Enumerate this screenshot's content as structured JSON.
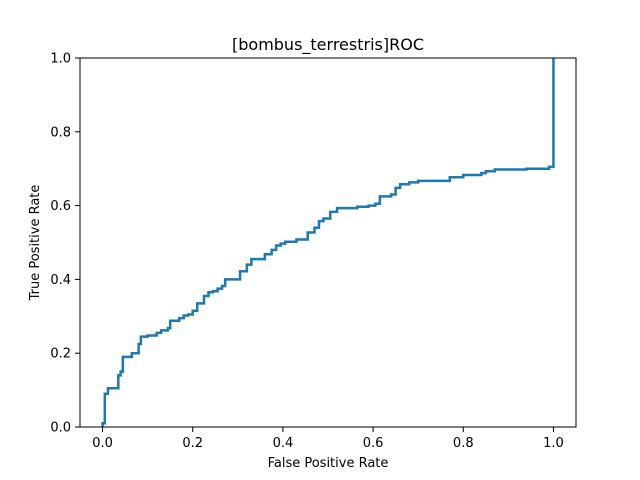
{
  "chart_data": {
    "type": "line",
    "title": "[bombus_terrestris]ROC",
    "xlabel": "False Positive Rate",
    "ylabel": "True Positive Rate",
    "xlim": [
      -0.05,
      1.05
    ],
    "ylim": [
      0.0,
      1.0
    ],
    "xticks": [
      0.0,
      0.2,
      0.4,
      0.6,
      0.8,
      1.0
    ],
    "xtick_labels": [
      "0.0",
      "0.2",
      "0.4",
      "0.6",
      "0.8",
      "1.0"
    ],
    "yticks": [
      0.0,
      0.2,
      0.4,
      0.6,
      0.8,
      1.0
    ],
    "ytick_labels": [
      "0.0",
      "0.2",
      "0.4",
      "0.6",
      "0.8",
      "1.0"
    ],
    "grid": false,
    "series": [
      {
        "color": "#1f77b4",
        "points": [
          [
            0.0,
            0.0
          ],
          [
            0.0,
            0.01
          ],
          [
            0.005,
            0.01
          ],
          [
            0.005,
            0.09
          ],
          [
            0.012,
            0.09
          ],
          [
            0.012,
            0.105
          ],
          [
            0.035,
            0.105
          ],
          [
            0.035,
            0.14
          ],
          [
            0.04,
            0.14
          ],
          [
            0.04,
            0.15
          ],
          [
            0.045,
            0.15
          ],
          [
            0.045,
            0.19
          ],
          [
            0.065,
            0.19
          ],
          [
            0.065,
            0.2
          ],
          [
            0.08,
            0.2
          ],
          [
            0.08,
            0.225
          ],
          [
            0.085,
            0.225
          ],
          [
            0.085,
            0.245
          ],
          [
            0.1,
            0.245
          ],
          [
            0.1,
            0.248
          ],
          [
            0.12,
            0.248
          ],
          [
            0.12,
            0.255
          ],
          [
            0.13,
            0.255
          ],
          [
            0.13,
            0.262
          ],
          [
            0.145,
            0.262
          ],
          [
            0.145,
            0.268
          ],
          [
            0.15,
            0.268
          ],
          [
            0.15,
            0.288
          ],
          [
            0.17,
            0.288
          ],
          [
            0.17,
            0.295
          ],
          [
            0.18,
            0.295
          ],
          [
            0.18,
            0.302
          ],
          [
            0.19,
            0.302
          ],
          [
            0.19,
            0.305
          ],
          [
            0.2,
            0.305
          ],
          [
            0.2,
            0.315
          ],
          [
            0.21,
            0.315
          ],
          [
            0.21,
            0.335
          ],
          [
            0.225,
            0.335
          ],
          [
            0.225,
            0.355
          ],
          [
            0.235,
            0.355
          ],
          [
            0.235,
            0.365
          ],
          [
            0.245,
            0.365
          ],
          [
            0.245,
            0.368
          ],
          [
            0.255,
            0.368
          ],
          [
            0.255,
            0.375
          ],
          [
            0.265,
            0.375
          ],
          [
            0.265,
            0.382
          ],
          [
            0.272,
            0.382
          ],
          [
            0.272,
            0.4
          ],
          [
            0.305,
            0.4
          ],
          [
            0.305,
            0.422
          ],
          [
            0.32,
            0.422
          ],
          [
            0.32,
            0.44
          ],
          [
            0.33,
            0.44
          ],
          [
            0.33,
            0.455
          ],
          [
            0.36,
            0.455
          ],
          [
            0.36,
            0.468
          ],
          [
            0.375,
            0.468
          ],
          [
            0.375,
            0.48
          ],
          [
            0.385,
            0.48
          ],
          [
            0.385,
            0.492
          ],
          [
            0.395,
            0.492
          ],
          [
            0.395,
            0.497
          ],
          [
            0.405,
            0.497
          ],
          [
            0.405,
            0.502
          ],
          [
            0.43,
            0.502
          ],
          [
            0.43,
            0.508
          ],
          [
            0.455,
            0.508
          ],
          [
            0.455,
            0.527
          ],
          [
            0.47,
            0.527
          ],
          [
            0.47,
            0.54
          ],
          [
            0.48,
            0.54
          ],
          [
            0.48,
            0.558
          ],
          [
            0.49,
            0.558
          ],
          [
            0.49,
            0.565
          ],
          [
            0.505,
            0.565
          ],
          [
            0.505,
            0.583
          ],
          [
            0.52,
            0.583
          ],
          [
            0.52,
            0.593
          ],
          [
            0.565,
            0.593
          ],
          [
            0.565,
            0.597
          ],
          [
            0.59,
            0.597
          ],
          [
            0.59,
            0.6
          ],
          [
            0.605,
            0.6
          ],
          [
            0.605,
            0.605
          ],
          [
            0.615,
            0.605
          ],
          [
            0.615,
            0.625
          ],
          [
            0.64,
            0.625
          ],
          [
            0.64,
            0.63
          ],
          [
            0.65,
            0.63
          ],
          [
            0.65,
            0.648
          ],
          [
            0.66,
            0.648
          ],
          [
            0.66,
            0.658
          ],
          [
            0.68,
            0.658
          ],
          [
            0.68,
            0.663
          ],
          [
            0.7,
            0.663
          ],
          [
            0.7,
            0.667
          ],
          [
            0.77,
            0.667
          ],
          [
            0.77,
            0.677
          ],
          [
            0.8,
            0.677
          ],
          [
            0.8,
            0.683
          ],
          [
            0.84,
            0.683
          ],
          [
            0.84,
            0.688
          ],
          [
            0.85,
            0.688
          ],
          [
            0.85,
            0.693
          ],
          [
            0.87,
            0.693
          ],
          [
            0.87,
            0.698
          ],
          [
            0.94,
            0.698
          ],
          [
            0.94,
            0.7
          ],
          [
            0.99,
            0.7
          ],
          [
            0.99,
            0.705
          ],
          [
            1.0,
            0.705
          ],
          [
            1.0,
            1.0
          ]
        ]
      }
    ]
  }
}
